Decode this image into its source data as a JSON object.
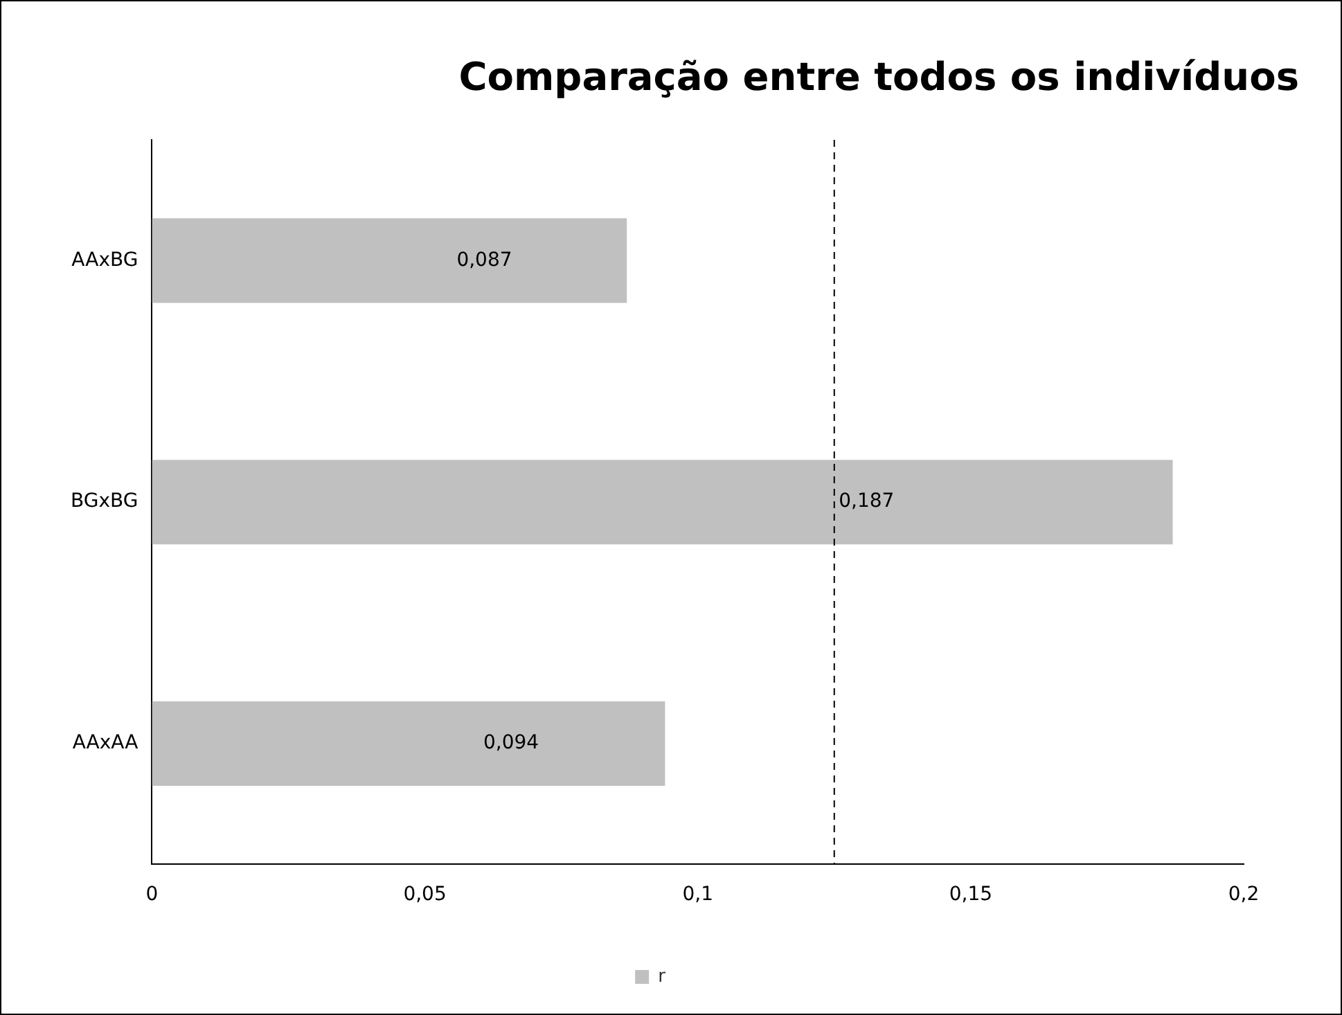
{
  "chart_data": {
    "type": "bar",
    "title": "Comparação entre todos os indivíduos",
    "orientation": "horizontal",
    "categories": [
      "AAxBG",
      "BGxBG",
      "AAxAA"
    ],
    "series": [
      {
        "name": "r",
        "color": "#c0c0c0",
        "values": [
          0.087,
          0.187,
          0.094
        ],
        "value_labels": [
          "0,087",
          "0,187",
          "0,094"
        ]
      }
    ],
    "xlim": [
      0,
      0.2
    ],
    "xticks": [
      0,
      {
        "value": 0.05,
        "label": "0,05"
      },
      {
        "value": 0.1,
        "label": "0,1"
      },
      {
        "value": 0.15,
        "label": "0,15"
      },
      {
        "value": 0.2,
        "label": "0,2"
      }
    ],
    "ref_lines": [
      {
        "axis": "x",
        "value": 0.125,
        "color": "#000000",
        "line_style": "dashed"
      }
    ],
    "grid": false,
    "legend": "bottom"
  }
}
